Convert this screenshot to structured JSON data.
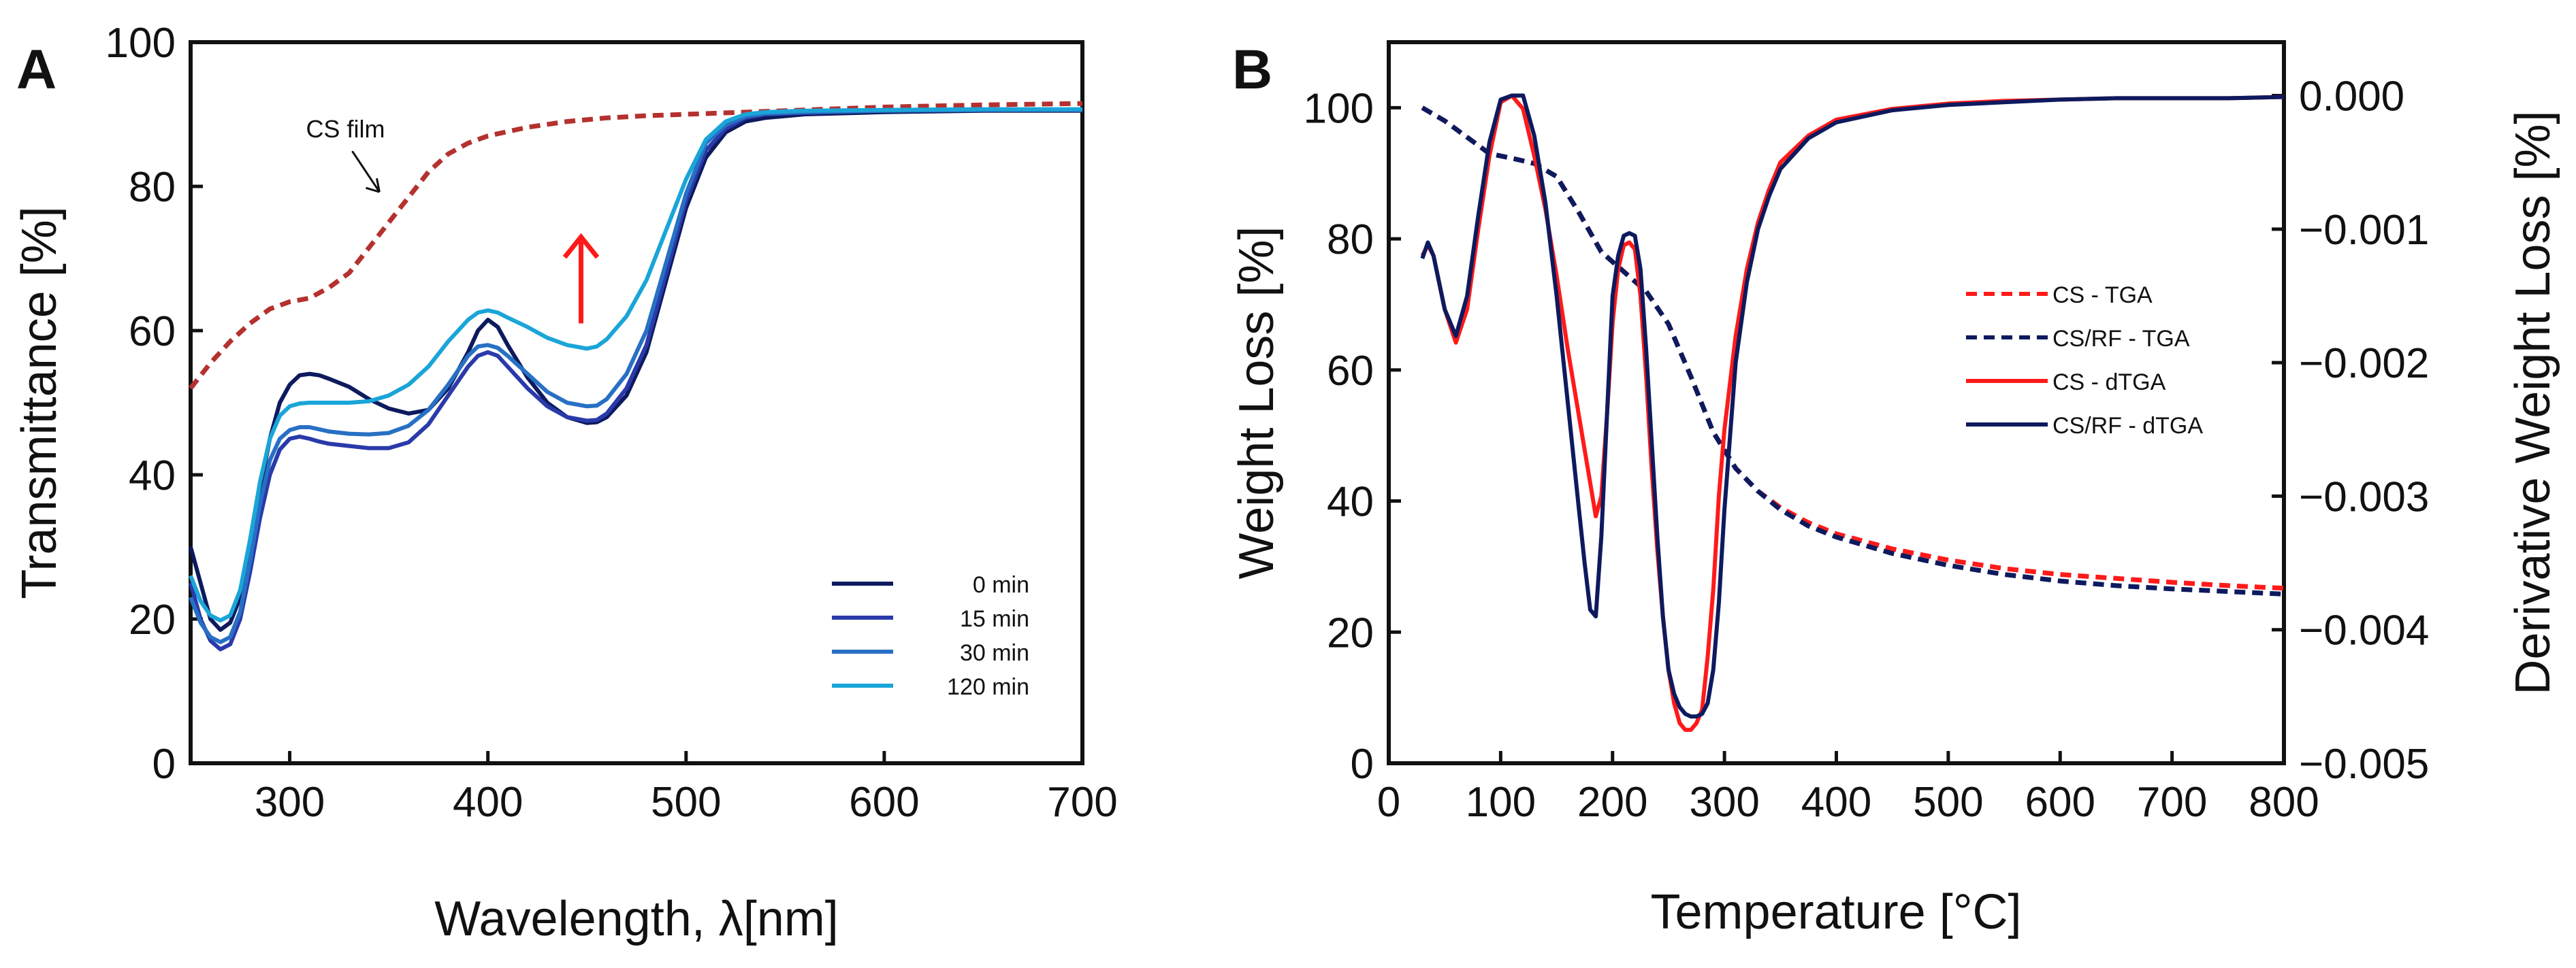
{
  "chart_data": [
    {
      "panel": "A",
      "type": "line",
      "xlabel": "Wavelength, λ[nm]",
      "ylabel": "Transmittance  [%]",
      "xlim": [
        250,
        700
      ],
      "ylim": [
        0,
        100
      ],
      "x_ticks": [
        "300",
        "400",
        "500",
        "600",
        "700"
      ],
      "y_ticks": [
        "0",
        "20",
        "40",
        "60",
        "80",
        "100"
      ],
      "legend_position": "bottom-right",
      "annotations": [
        {
          "text": "CS film",
          "x": 335,
          "y": 83
        },
        {
          "arrow": "up",
          "color": "#ff1a1a",
          "x": 447,
          "y_from": 61,
          "y_to": 73
        }
      ],
      "series": [
        {
          "name": "CS film",
          "show_in_legend": false,
          "color": "#b4312f",
          "dash": true,
          "x": [
            250,
            260,
            270,
            280,
            290,
            300,
            310,
            320,
            330,
            340,
            350,
            360,
            370,
            380,
            390,
            400,
            420,
            440,
            460,
            480,
            500,
            520,
            540,
            560,
            580,
            600,
            650,
            700
          ],
          "y": [
            52,
            55.5,
            58.5,
            61,
            63,
            64,
            64.5,
            66,
            68,
            71.5,
            75,
            78.5,
            82,
            84.5,
            86,
            87,
            88.2,
            89,
            89.5,
            89.8,
            90,
            90.2,
            90.4,
            90.6,
            90.8,
            91,
            91.3,
            91.5
          ]
        },
        {
          "name": "0 min",
          "color": "#0d1a5e",
          "x": [
            250,
            255,
            260,
            265,
            270,
            275,
            280,
            285,
            290,
            295,
            300,
            305,
            310,
            315,
            320,
            330,
            340,
            350,
            360,
            370,
            380,
            390,
            395,
            400,
            405,
            410,
            420,
            430,
            440,
            450,
            455,
            460,
            470,
            480,
            490,
            500,
            510,
            520,
            530,
            540,
            560,
            600,
            650,
            700
          ],
          "y": [
            30,
            25,
            20,
            18.5,
            19.5,
            23,
            30,
            38,
            45,
            50,
            52.5,
            53.8,
            54,
            53.8,
            53.3,
            52.2,
            50.5,
            49.2,
            48.5,
            49,
            52,
            57,
            60,
            61.5,
            60.5,
            58,
            53.5,
            50,
            48,
            47.2,
            47.3,
            48,
            51,
            57,
            67,
            77,
            84,
            87.5,
            89,
            89.5,
            90,
            90.3,
            90.5,
            90.5
          ]
        },
        {
          "name": "15 min",
          "color": "#2a3aaa",
          "x": [
            250,
            255,
            260,
            265,
            270,
            275,
            280,
            285,
            290,
            295,
            300,
            305,
            310,
            315,
            320,
            330,
            340,
            350,
            360,
            370,
            380,
            390,
            395,
            400,
            405,
            410,
            420,
            430,
            440,
            450,
            455,
            460,
            470,
            480,
            490,
            500,
            510,
            520,
            530,
            540,
            560,
            600,
            650,
            700
          ],
          "y": [
            25,
            20,
            17,
            15.8,
            16.5,
            20,
            26.5,
            34,
            40,
            43.5,
            45,
            45.3,
            45,
            44.6,
            44.3,
            44,
            43.7,
            43.7,
            44.5,
            47,
            51,
            55,
            56.5,
            57,
            56.5,
            55,
            52,
            49.5,
            48,
            47.5,
            47.6,
            48.5,
            52,
            58,
            68,
            78,
            85,
            88,
            89.5,
            90,
            90.2,
            90.5,
            90.6,
            90.6
          ]
        },
        {
          "name": "30 min",
          "color": "#2770c4",
          "x": [
            250,
            255,
            260,
            265,
            270,
            275,
            280,
            285,
            290,
            295,
            300,
            305,
            310,
            315,
            320,
            330,
            340,
            350,
            360,
            370,
            380,
            390,
            395,
            400,
            405,
            410,
            420,
            430,
            440,
            450,
            455,
            460,
            470,
            480,
            490,
            500,
            510,
            520,
            530,
            540,
            560,
            600,
            650,
            700
          ],
          "y": [
            23,
            19.5,
            17.5,
            16.8,
            17.5,
            21,
            28,
            36,
            42,
            45,
            46.2,
            46.6,
            46.6,
            46.3,
            46,
            45.7,
            45.6,
            45.8,
            46.8,
            49,
            52.5,
            56.5,
            57.8,
            58,
            57.6,
            56.5,
            54,
            51.5,
            50,
            49.5,
            49.6,
            50.5,
            54,
            60,
            69.5,
            79,
            86,
            88.5,
            89.7,
            90.1,
            90.3,
            90.5,
            90.6,
            90.6
          ]
        },
        {
          "name": "120 min",
          "color": "#1aa5d8",
          "x": [
            250,
            255,
            260,
            265,
            270,
            275,
            280,
            285,
            290,
            295,
            300,
            305,
            310,
            315,
            320,
            330,
            340,
            350,
            360,
            370,
            380,
            390,
            395,
            400,
            405,
            410,
            420,
            430,
            440,
            450,
            455,
            460,
            470,
            480,
            490,
            500,
            510,
            520,
            530,
            540,
            560,
            600,
            650,
            700
          ],
          "y": [
            26,
            22.5,
            20.5,
            19.8,
            20.5,
            24,
            31,
            39,
            45,
            48.2,
            49.5,
            49.9,
            50,
            50,
            50,
            50,
            50.2,
            51,
            52.5,
            55,
            58.5,
            61.5,
            62.5,
            62.8,
            62.5,
            61.8,
            60.5,
            59,
            58,
            57.5,
            57.8,
            58.8,
            62,
            67,
            74,
            81,
            86.5,
            89,
            90,
            90.3,
            90.5,
            90.6,
            90.7,
            90.7
          ]
        }
      ]
    },
    {
      "panel": "B",
      "type": "line",
      "xlabel": "Temperature [°C]",
      "ylabel": "Weight Loss [%]",
      "y2label": "Derivative Weight Loss [%]",
      "xlim": [
        0,
        800
      ],
      "ylim": [
        0,
        110
      ],
      "y2lim": [
        -0.005,
        0.0004
      ],
      "x_ticks": [
        "0",
        "100",
        "200",
        "300",
        "400",
        "500",
        "600",
        "700",
        "800"
      ],
      "y_ticks": [
        "0",
        "20",
        "40",
        "60",
        "80",
        "100"
      ],
      "y2_ticks": [
        "0.000",
        "−0.001",
        "−0.002",
        "−0.003",
        "−0.004",
        "−0.005"
      ],
      "legend_position": "center-right",
      "series": [
        {
          "name": "CS - TGA",
          "axis": "left",
          "color": "#ff1a1a",
          "dash": true,
          "x": [
            30,
            50,
            70,
            90,
            110,
            130,
            150,
            170,
            190,
            210,
            230,
            250,
            270,
            290,
            310,
            330,
            350,
            375,
            400,
            450,
            500,
            550,
            600,
            650,
            700,
            750,
            800
          ],
          "y": [
            100,
            98,
            95.5,
            93,
            92.3,
            91.5,
            89.5,
            84,
            78,
            75,
            72,
            67,
            59,
            50.5,
            45,
            41.5,
            39,
            36.7,
            35,
            32.7,
            31,
            29.7,
            28.8,
            28.2,
            27.6,
            27.1,
            26.7
          ]
        },
        {
          "name": "CS/RF - TGA",
          "axis": "left",
          "color": "#0d1a5e",
          "dash": true,
          "x": [
            30,
            50,
            70,
            90,
            110,
            130,
            150,
            170,
            190,
            210,
            230,
            250,
            270,
            290,
            310,
            330,
            350,
            375,
            400,
            450,
            500,
            550,
            600,
            650,
            700,
            750,
            800
          ],
          "y": [
            100,
            98,
            95.5,
            93,
            92.3,
            91.5,
            89.5,
            84,
            78,
            75,
            72,
            67,
            59,
            50.5,
            45,
            41.5,
            38.7,
            36.2,
            34.5,
            32,
            30.2,
            28.8,
            27.8,
            27.1,
            26.6,
            26.2,
            25.8
          ]
        },
        {
          "name": "CS - dTGA",
          "axis": "right",
          "color": "#ff1a1a",
          "x": [
            30,
            35,
            40,
            50,
            60,
            70,
            80,
            90,
            100,
            110,
            120,
            130,
            140,
            150,
            160,
            170,
            180,
            185,
            190,
            195,
            200,
            205,
            210,
            215,
            220,
            225,
            230,
            235,
            240,
            245,
            250,
            255,
            260,
            265,
            270,
            275,
            280,
            285,
            290,
            295,
            300,
            310,
            320,
            330,
            340,
            350,
            375,
            400,
            450,
            500,
            550,
            600,
            650,
            700,
            750,
            800
          ],
          "y": [
            -0.0012,
            -0.00112,
            -0.0012,
            -0.0016,
            -0.00185,
            -0.0016,
            -0.001,
            -0.00045,
            -5e-05,
            0,
            -0.0001,
            -0.00045,
            -0.00085,
            -0.00135,
            -0.0019,
            -0.0024,
            -0.0029,
            -0.00315,
            -0.003,
            -0.0024,
            -0.0017,
            -0.0013,
            -0.00112,
            -0.0011,
            -0.00115,
            -0.0015,
            -0.0021,
            -0.0028,
            -0.0034,
            -0.0039,
            -0.0043,
            -0.00455,
            -0.0047,
            -0.00475,
            -0.00475,
            -0.0047,
            -0.0046,
            -0.0042,
            -0.0037,
            -0.003,
            -0.0025,
            -0.0018,
            -0.0013,
            -0.00095,
            -0.0007,
            -0.0005,
            -0.0003,
            -0.00018,
            -0.0001,
            -6e-05,
            -4e-05,
            -3e-05,
            -2e-05,
            -2e-05,
            -2e-05,
            -1e-05
          ]
        },
        {
          "name": "CS/RF - dTGA",
          "axis": "right",
          "color": "#0d1a5e",
          "x": [
            30,
            35,
            40,
            50,
            60,
            70,
            80,
            90,
            100,
            110,
            120,
            130,
            140,
            150,
            160,
            170,
            175,
            180,
            185,
            190,
            195,
            200,
            205,
            210,
            215,
            220,
            225,
            230,
            235,
            240,
            245,
            250,
            255,
            260,
            265,
            270,
            275,
            280,
            285,
            290,
            295,
            300,
            310,
            320,
            330,
            340,
            350,
            375,
            400,
            450,
            500,
            550,
            600,
            650,
            700,
            750,
            800
          ],
          "y": [
            -0.00122,
            -0.0011,
            -0.0012,
            -0.0016,
            -0.0018,
            -0.0015,
            -0.0009,
            -0.00035,
            -3e-05,
            0,
            0,
            -0.0003,
            -0.0008,
            -0.0015,
            -0.0023,
            -0.0031,
            -0.0035,
            -0.00385,
            -0.0039,
            -0.0033,
            -0.0024,
            -0.0015,
            -0.0012,
            -0.00105,
            -0.00103,
            -0.00105,
            -0.0013,
            -0.0019,
            -0.0026,
            -0.0033,
            -0.0039,
            -0.0043,
            -0.00448,
            -0.00458,
            -0.00463,
            -0.00465,
            -0.00465,
            -0.00463,
            -0.00455,
            -0.0043,
            -0.0038,
            -0.0031,
            -0.002,
            -0.0014,
            -0.001,
            -0.00075,
            -0.00055,
            -0.00032,
            -0.0002,
            -0.00011,
            -7e-05,
            -5e-05,
            -3e-05,
            -2e-05,
            -2e-05,
            -2e-05,
            -1e-05
          ]
        }
      ]
    }
  ]
}
